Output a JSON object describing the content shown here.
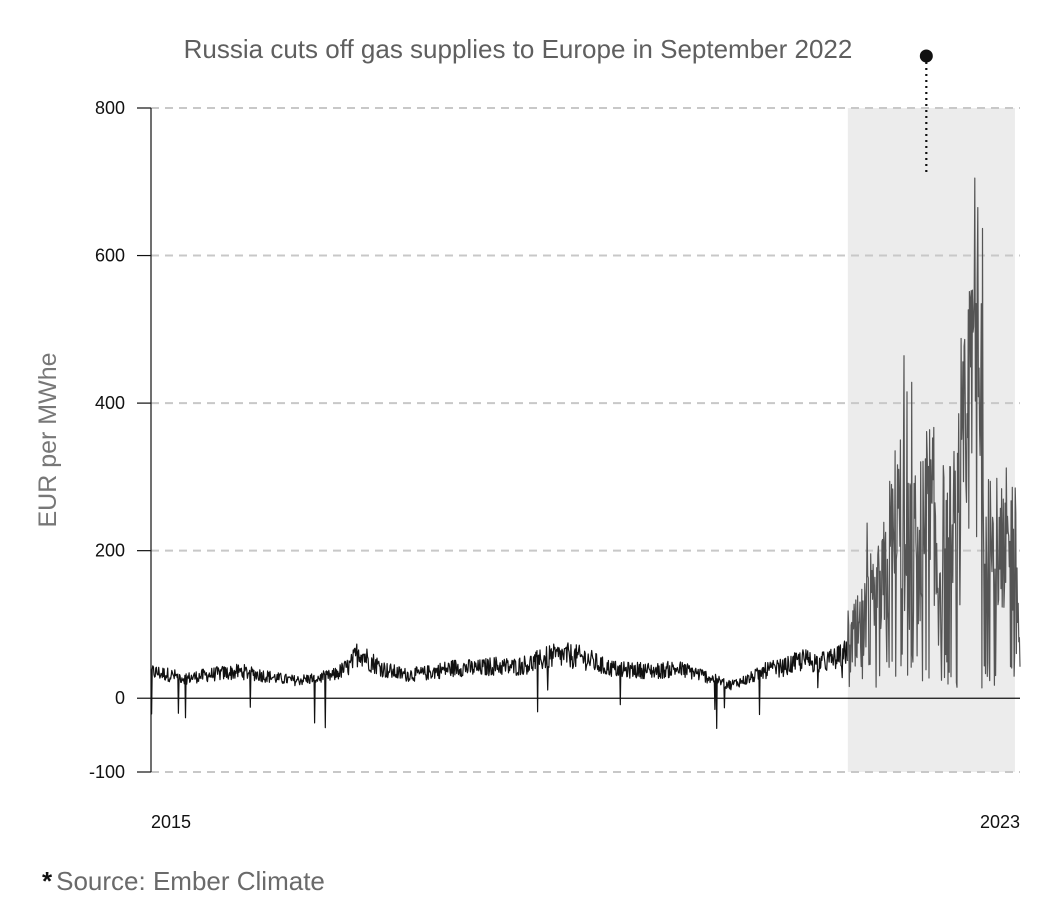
{
  "chart_data": {
    "type": "line",
    "title": "Russia cuts off gas supplies to Europe in September 2022",
    "ylabel": "EUR per MWhe",
    "xlabel": "",
    "ylim": [
      -100,
      800
    ],
    "xlim": [
      "2015-01-01",
      "2023-01-01"
    ],
    "yticks": [
      {
        "value": 800,
        "label": "800"
      },
      {
        "value": 600,
        "label": "600"
      },
      {
        "value": 400,
        "label": "400"
      },
      {
        "value": 200,
        "label": "200"
      },
      {
        "value": 0,
        "label": "0"
      },
      {
        "value": -100,
        "label": "-100"
      }
    ],
    "xticks": [
      {
        "value": "2015-01-01",
        "label": "2015"
      },
      {
        "value": "2023-01-01",
        "label": "2023"
      }
    ],
    "grid": true,
    "highlight_period": {
      "start": "2021-06-01",
      "end": "2022-12-15"
    },
    "annotation": {
      "date": "2022-02-20",
      "value": 800
    },
    "series": [
      {
        "color": "#111111",
        "highlight_color": "#555555",
        "points": [
          [
            "2015-01-01",
            36
          ],
          [
            "2015-03-01",
            32
          ],
          [
            "2015-05-01",
            27
          ],
          [
            "2015-07-01",
            31
          ],
          [
            "2015-09-01",
            34
          ],
          [
            "2015-11-01",
            36
          ],
          [
            "2016-01-01",
            32
          ],
          [
            "2016-03-01",
            27
          ],
          [
            "2016-05-01",
            24
          ],
          [
            "2016-07-01",
            27
          ],
          [
            "2016-09-01",
            30
          ],
          [
            "2016-11-01",
            44
          ],
          [
            "2016-12-01",
            65
          ],
          [
            "2017-01-01",
            52
          ],
          [
            "2017-03-01",
            38
          ],
          [
            "2017-05-01",
            32
          ],
          [
            "2017-07-01",
            33
          ],
          [
            "2017-09-01",
            38
          ],
          [
            "2017-11-01",
            42
          ],
          [
            "2018-01-01",
            40
          ],
          [
            "2018-03-01",
            44
          ],
          [
            "2018-05-01",
            42
          ],
          [
            "2018-07-01",
            47
          ],
          [
            "2018-09-01",
            56
          ],
          [
            "2018-11-01",
            58
          ],
          [
            "2019-01-01",
            54
          ],
          [
            "2019-03-01",
            43
          ],
          [
            "2019-05-01",
            38
          ],
          [
            "2019-07-01",
            38
          ],
          [
            "2019-09-01",
            37
          ],
          [
            "2019-11-01",
            40
          ],
          [
            "2020-01-01",
            35
          ],
          [
            "2020-03-01",
            27
          ],
          [
            "2020-05-01",
            18
          ],
          [
            "2020-07-01",
            26
          ],
          [
            "2020-09-01",
            38
          ],
          [
            "2020-11-01",
            42
          ],
          [
            "2021-01-01",
            52
          ],
          [
            "2021-03-01",
            48
          ],
          [
            "2021-05-01",
            55
          ],
          [
            "2021-07-01",
            72
          ],
          [
            "2021-09-01",
            100
          ],
          [
            "2021-10-01",
            130
          ],
          [
            "2021-11-01",
            185
          ],
          [
            "2021-12-01",
            210
          ],
          [
            "2022-01-01",
            170
          ],
          [
            "2022-02-01",
            175
          ],
          [
            "2022-03-01",
            210
          ],
          [
            "2022-04-01",
            180
          ],
          [
            "2022-05-01",
            165
          ],
          [
            "2022-06-01",
            190
          ],
          [
            "2022-07-01",
            270
          ],
          [
            "2022-08-01",
            420
          ],
          [
            "2022-09-01",
            330
          ],
          [
            "2022-10-01",
            170
          ],
          [
            "2022-11-01",
            150
          ],
          [
            "2022-12-01",
            180
          ],
          [
            "2023-01-01",
            110
          ]
        ]
      }
    ]
  },
  "footer": {
    "star": "*",
    "source": "Source: Ember Climate"
  }
}
